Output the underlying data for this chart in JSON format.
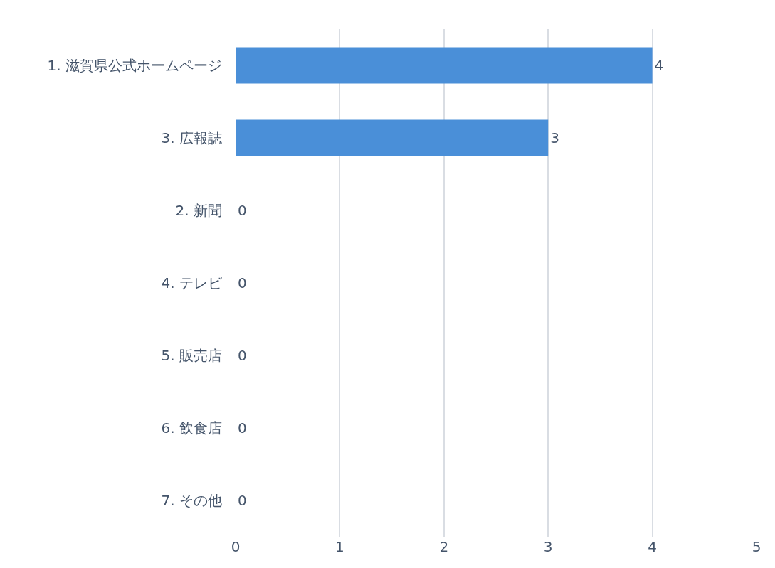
{
  "chart_data": {
    "type": "bar",
    "orientation": "horizontal",
    "categories": [
      "1. 滋賀県公式ホームページ",
      "3. 広報誌",
      "2. 新聞",
      "4. テレビ",
      "5. 販売店",
      "6. 飲食店",
      "7. その他"
    ],
    "values": [
      4,
      3,
      0,
      0,
      0,
      0,
      0
    ],
    "color": "#4a8fd8",
    "xlim": [
      0,
      5
    ],
    "xticks": [
      0,
      1,
      2,
      3,
      4,
      5
    ],
    "grid": "x",
    "data_labels": true
  }
}
